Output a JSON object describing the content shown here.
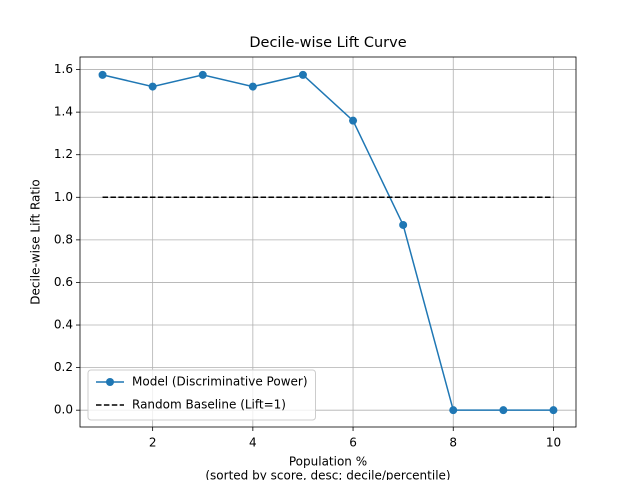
{
  "chart_data": {
    "type": "line",
    "title": "Decile-wise Lift Curve",
    "x_label": "Population %",
    "x_label_2": "(sorted by score, desc; decile/percentile)",
    "y_label": "Decile-wise Lift Ratio",
    "x": [
      1,
      2,
      3,
      4,
      5,
      6,
      7,
      8,
      9,
      10
    ],
    "series": [
      {
        "name": "Model (Discriminative Power)",
        "color": "#1f77b4",
        "marker": true,
        "values": [
          1.575,
          1.52,
          1.575,
          1.52,
          1.575,
          1.36,
          0.87,
          0,
          0,
          0
        ]
      },
      {
        "name": "Random Baseline (Lift=1)",
        "color": "#000000",
        "dashed": true,
        "x": [
          1,
          10
        ],
        "values": [
          1,
          1
        ]
      }
    ],
    "xlim": [
      0.55,
      10.45
    ],
    "xticks": [
      2,
      4,
      6,
      8,
      10
    ],
    "ylim": [
      -0.079,
      1.659
    ],
    "yticks": [
      {
        "value": 0,
        "label": "0.0"
      },
      {
        "value": 0.2,
        "label": "0.2"
      },
      {
        "value": 0.4,
        "label": "0.4"
      },
      {
        "value": 0.6,
        "label": "0.6"
      },
      {
        "value": 0.8,
        "label": "0.8"
      },
      {
        "value": 1.0,
        "label": "1.0"
      },
      {
        "value": 1.2,
        "label": "1.2"
      },
      {
        "value": 1.4,
        "label": "1.4"
      },
      {
        "value": 1.6,
        "label": "1.6"
      }
    ],
    "grid": true,
    "legend": "lower left"
  }
}
